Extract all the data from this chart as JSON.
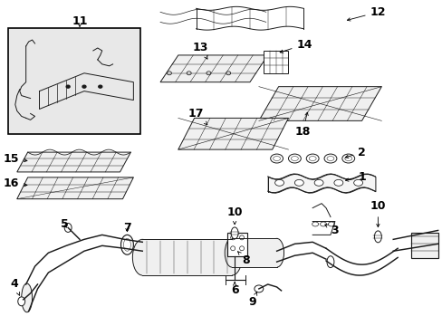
{
  "bg_color": "#ffffff",
  "line_color": "#1a1a1a",
  "fig_width": 4.89,
  "fig_height": 3.6,
  "dpi": 100,
  "label_fs": 8,
  "lw": 0.7
}
